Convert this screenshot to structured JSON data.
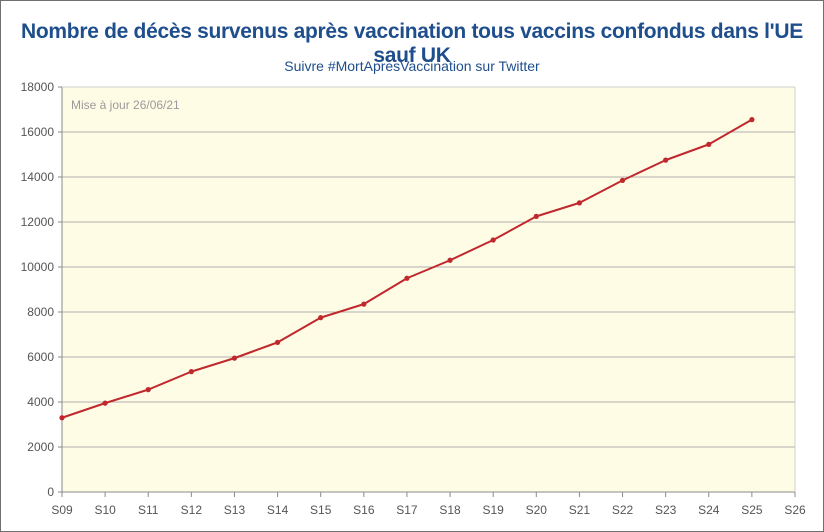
{
  "chart_data": {
    "type": "line",
    "title": "Nombre de décès survenus après vaccination tous vaccins confondus dans l'UE sauf UK",
    "subtitle": "Suivre #MortApresVaccination sur Twitter",
    "annotation": "Mise à jour 26/06/21",
    "categories": [
      "S09",
      "S10",
      "S11",
      "S12",
      "S13",
      "S14",
      "S15",
      "S16",
      "S17",
      "S18",
      "S19",
      "S20",
      "S21",
      "S22",
      "S23",
      "S24",
      "S25",
      "S26"
    ],
    "series": [
      {
        "values": [
          3300,
          3950,
          4550,
          5350,
          5950,
          6650,
          7750,
          8350,
          9500,
          10300,
          11200,
          12250,
          12850,
          13850,
          14750,
          15450,
          16550,
          null
        ],
        "color": "#c0282d"
      }
    ],
    "ylim": [
      0,
      18000
    ],
    "yticks": [
      0,
      2000,
      4000,
      6000,
      8000,
      10000,
      12000,
      14000,
      16000,
      18000
    ],
    "grid": true,
    "plot_background": "#fffce6",
    "grid_color": "#b0b0b0"
  }
}
